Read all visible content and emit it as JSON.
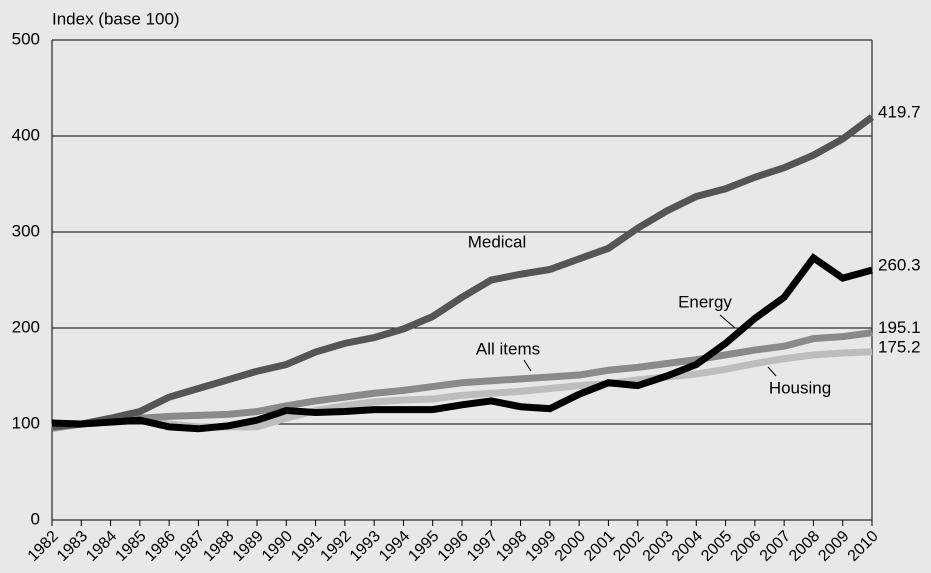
{
  "chart_data": {
    "type": "line",
    "y_axis_label": "Index (base 100)",
    "categories": [
      "1982",
      "1983",
      "1984",
      "1985",
      "1986",
      "1987",
      "1988",
      "1989",
      "1990",
      "1991",
      "1992",
      "1993",
      "1994",
      "1995",
      "1996",
      "1997",
      "1998",
      "1999",
      "2000",
      "2001",
      "2002",
      "2003",
      "2004",
      "2005",
      "2006",
      "2007",
      "2008",
      "2009",
      "2010"
    ],
    "series": [
      {
        "name": "Housing",
        "color": "#bdbdbd",
        "values": [
          95,
          100,
          103,
          105,
          100,
          97,
          97,
          97,
          106,
          114,
          119,
          123,
          125,
          126,
          130,
          132,
          134,
          137,
          140,
          142,
          146,
          149,
          152,
          157,
          163,
          168,
          172,
          174,
          175.2
        ]
      },
      {
        "name": "All items",
        "color": "#8a8a8a",
        "values": [
          96,
          100,
          104,
          106,
          108,
          109,
          110,
          113,
          119,
          124,
          128,
          132,
          135,
          139,
          143,
          145,
          147,
          149,
          151,
          156,
          159,
          163,
          167,
          172,
          177,
          181,
          189,
          191,
          195.1
        ]
      },
      {
        "name": "Medical",
        "color": "#555555",
        "values": [
          97,
          100,
          106,
          113,
          128,
          137,
          146,
          155,
          162,
          175,
          184,
          190,
          199,
          212,
          232,
          250,
          256,
          261,
          272,
          283,
          304,
          322,
          337,
          345,
          357,
          367,
          380,
          397,
          419.7
        ]
      },
      {
        "name": "Energy",
        "color": "#000000",
        "values": [
          101,
          100,
          102,
          104,
          97,
          95,
          98,
          104,
          114,
          112,
          113,
          115,
          115,
          115,
          120,
          124,
          118,
          116,
          131,
          143,
          140,
          150,
          162,
          184,
          210,
          232,
          273,
          252,
          260.3
        ]
      }
    ],
    "ylim": [
      0,
      500
    ],
    "yticks": [
      0,
      100,
      200,
      300,
      400,
      500
    ],
    "grid": true
  }
}
